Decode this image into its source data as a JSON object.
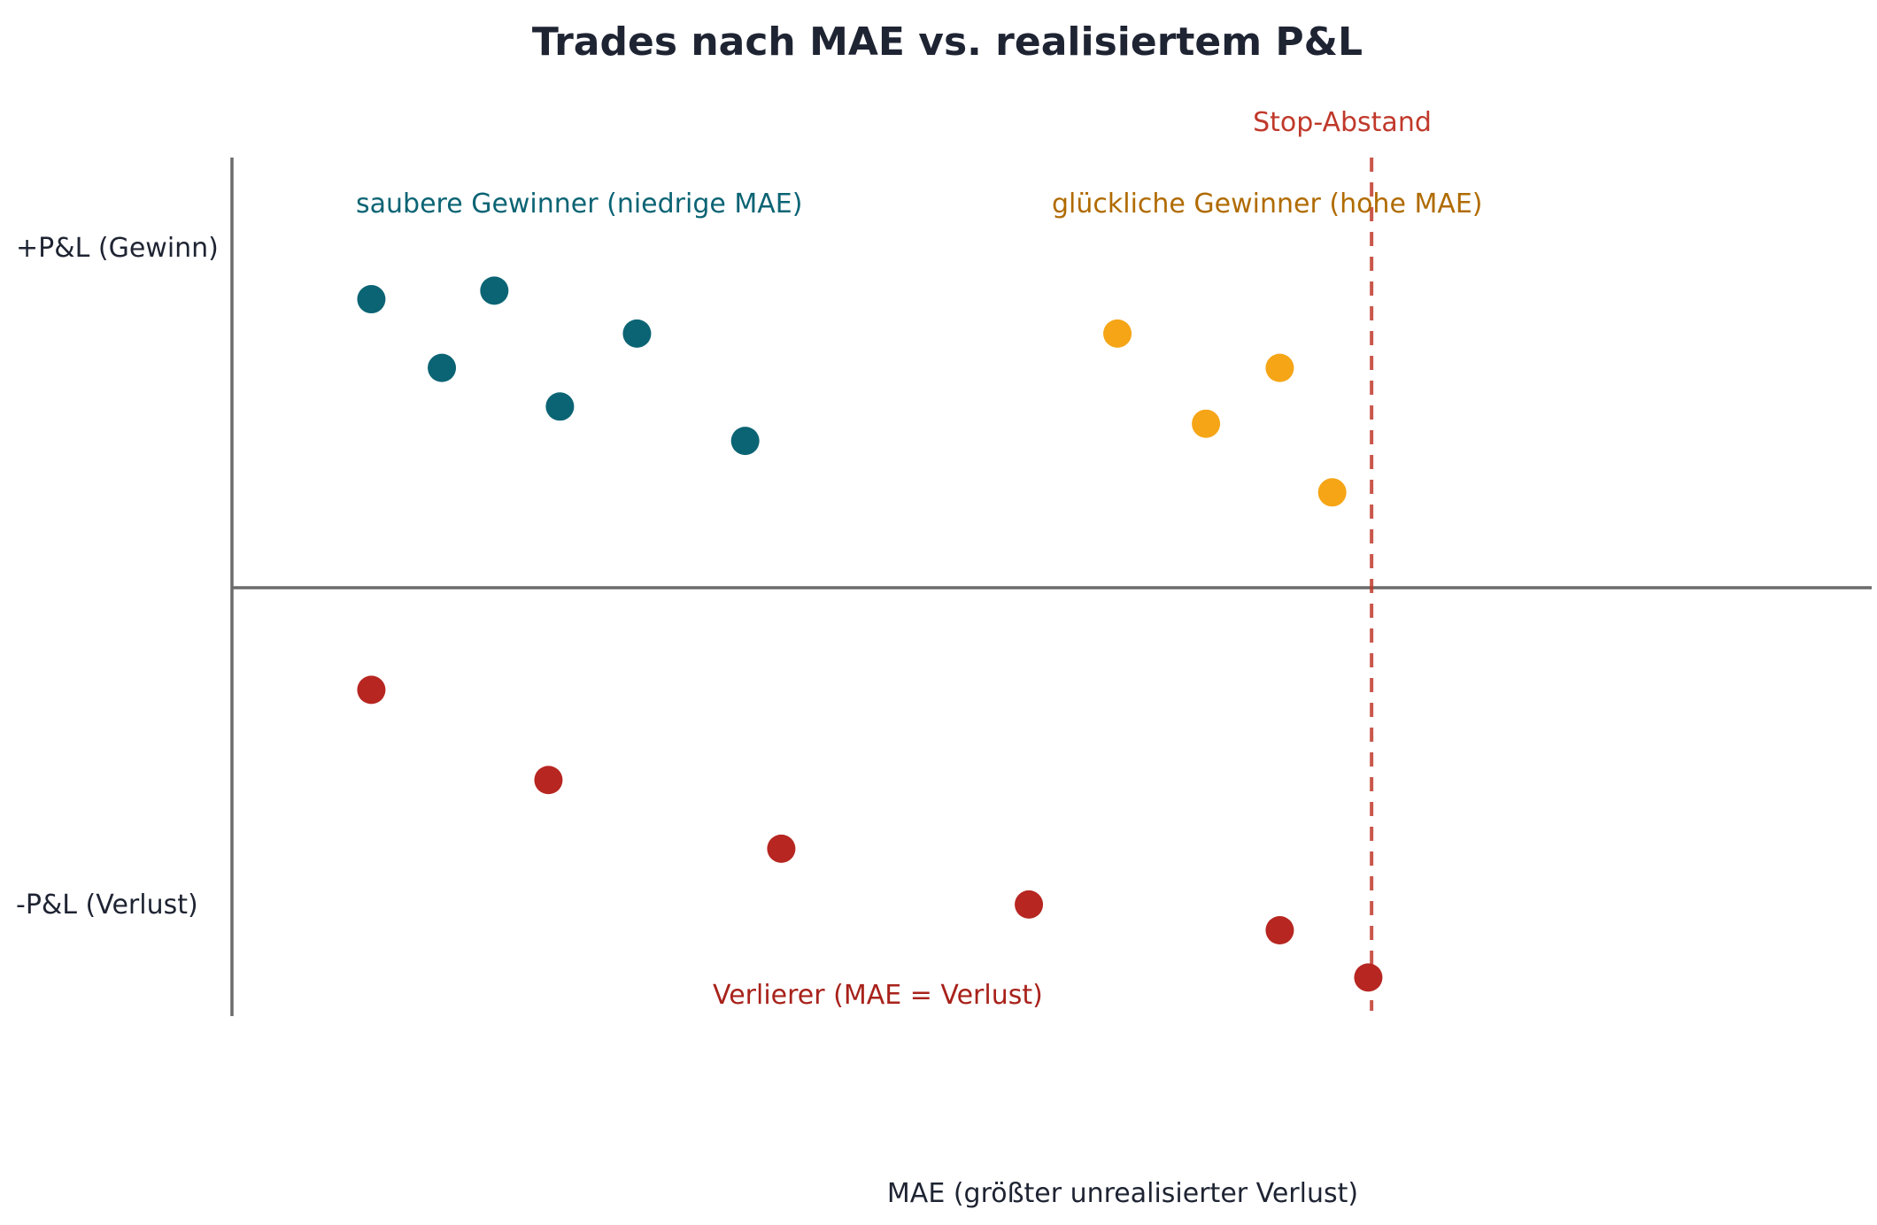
{
  "chart_data": {
    "type": "scatter",
    "title": "Trades nach MAE vs. realisiertem P&L",
    "xlabel": "MAE (größter unrealisierter Verlust)",
    "y_pos_label": "+P&L (Gewinn)",
    "y_neg_label": "-P&L (Verlust)",
    "xlim": [
      0,
      100
    ],
    "ylim": [
      -100,
      100
    ],
    "grid": false,
    "reference_line": {
      "x": 69.5,
      "label": "Stop-Abstand",
      "color": "#c0392b"
    },
    "annotations": [
      {
        "id": "clean",
        "text": "saubere Gewinner (niedrige MAE)",
        "color": "#0b6474"
      },
      {
        "id": "lucky",
        "text": "glückliche Gewinner (hohe MAE)",
        "color": "#b06b00"
      },
      {
        "id": "losers",
        "text": "Verlierer (MAE = Verlust)",
        "color": "#a8221b"
      }
    ],
    "series": [
      {
        "id": "clean-winners",
        "color": "#0b6474",
        "points": [
          {
            "x": 8.5,
            "y": 67
          },
          {
            "x": 16,
            "y": 69
          },
          {
            "x": 12.8,
            "y": 51
          },
          {
            "x": 20,
            "y": 42
          },
          {
            "x": 24.7,
            "y": 59
          },
          {
            "x": 31.3,
            "y": 34
          }
        ]
      },
      {
        "id": "lucky-winners",
        "color": "#f5a516",
        "points": [
          {
            "x": 54,
            "y": 59
          },
          {
            "x": 59.4,
            "y": 38
          },
          {
            "x": 63.9,
            "y": 51
          },
          {
            "x": 67.1,
            "y": 22
          }
        ]
      },
      {
        "id": "losers",
        "color": "#b72621",
        "points": [
          {
            "x": 8.5,
            "y": -24
          },
          {
            "x": 19.3,
            "y": -45
          },
          {
            "x": 33.5,
            "y": -61
          },
          {
            "x": 48.6,
            "y": -74
          },
          {
            "x": 63.9,
            "y": -80
          },
          {
            "x": 69.3,
            "y": -91
          }
        ]
      }
    ]
  }
}
